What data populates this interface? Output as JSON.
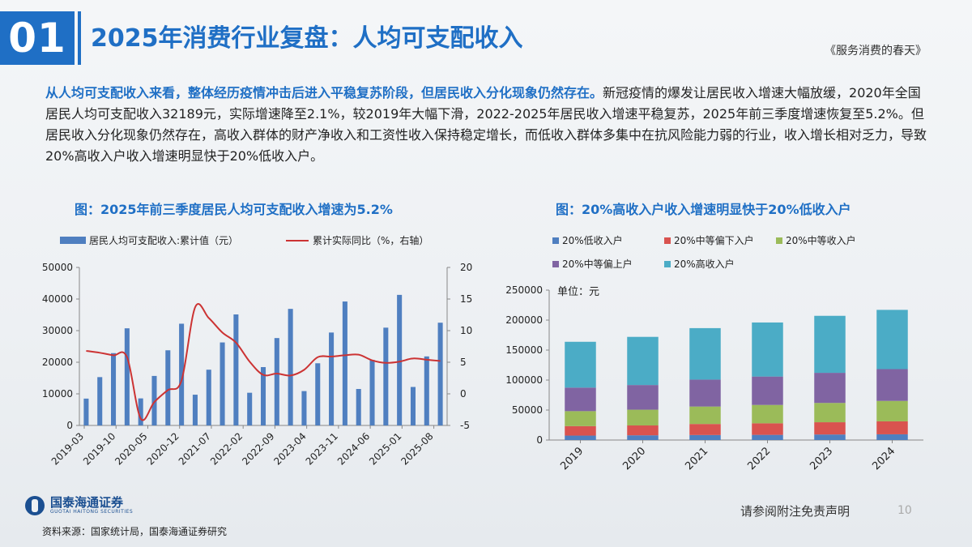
{
  "header": {
    "section_number": "01",
    "title": "2025年消费行业复盘：人均可支配收入",
    "series_name": "《服务消费的春天》"
  },
  "intro": {
    "highlight": "从人均可支配收入来看，整体经历疫情冲击后进入平稳复苏阶段，但居民收入分化现象仍然存在。",
    "body": "新冠疫情的爆发让居民收入增速大幅放缓，2020年全国居民人均可支配收入32189元，实际增速降至2.1%，较2019年大幅下滑，2022-2025年居民收入增速平稳复苏，2025年前三季度增速恢复至5.2%。但居民收入分化现象仍然存在，高收入群体的财产净收入和工资性收入保持稳定增长，而低收入群体多集中在抗风险能力弱的行业，收入增长相对乏力，导致20%高收入户收入增速明显快于20%低收入户。"
  },
  "chart_titles": {
    "left": "图：2025年前三季度居民人均可支配收入增速为5.2%",
    "right": "图：20%高收入户收入增速明显快于20%低收入户"
  },
  "chart_data": [
    {
      "type": "bar",
      "title": "图：2025年前三季度居民人均可支配收入增速为5.2%",
      "legend_position": "top",
      "y_left_lim": [
        0,
        50000
      ],
      "y_left_ticks": [
        "0",
        "10000",
        "20000",
        "30000",
        "40000",
        "50000"
      ],
      "y_right_lim": [
        -5,
        20
      ],
      "y_right_ticks": [
        "-5",
        "0",
        "5",
        "10",
        "15",
        "20"
      ],
      "x_tick_labels": [
        "2019-03",
        "2019-10",
        "2020-05",
        "2020-12",
        "2021-07",
        "2022-02",
        "2022-09",
        "2023-04",
        "2023-11",
        "2024-06",
        "2025-01",
        "2025-08"
      ],
      "bar_color": "#4f7fc0",
      "line_color": "#cc3333",
      "bar_series": {
        "name": "居民人均可支配收入:累计值（元）",
        "x": [
          "2019-03",
          "2019-06",
          "2019-09",
          "2019-12",
          "2020-03",
          "2020-06",
          "2020-09",
          "2020-12",
          "2021-03",
          "2021-06",
          "2021-09",
          "2021-12",
          "2022-03",
          "2022-06",
          "2022-09",
          "2022-12",
          "2023-03",
          "2023-06",
          "2023-09",
          "2023-12",
          "2024-03",
          "2024-06",
          "2024-09",
          "2024-12",
          "2025-03",
          "2025-06",
          "2025-09"
        ],
        "values": [
          8493,
          15294,
          22882,
          30733,
          8561,
          15666,
          23781,
          32189,
          9730,
          17642,
          26265,
          35128,
          10345,
          18463,
          27650,
          36883,
          10870,
          19672,
          29398,
          39218,
          11539,
          20733,
          30941,
          41314,
          12179,
          21840,
          32509
        ]
      },
      "line_series": {
        "name": "累计实际同比（%，右轴）",
        "x": [
          "2019-03",
          "2019-06",
          "2019-09",
          "2019-12",
          "2020-03",
          "2020-06",
          "2020-09",
          "2020-12",
          "2021-03",
          "2021-06",
          "2021-09",
          "2021-12",
          "2022-03",
          "2022-06",
          "2022-09",
          "2022-12",
          "2023-03",
          "2023-06",
          "2023-09",
          "2023-12",
          "2024-03",
          "2024-06",
          "2024-09",
          "2024-12",
          "2025-03",
          "2025-06",
          "2025-09"
        ],
        "values": [
          6.8,
          6.5,
          6.1,
          5.8,
          -3.9,
          -1.3,
          0.6,
          2.1,
          13.7,
          12.0,
          9.7,
          8.1,
          5.1,
          3.0,
          3.2,
          2.9,
          3.8,
          5.8,
          5.9,
          6.1,
          6.2,
          5.3,
          4.9,
          5.1,
          5.6,
          5.4,
          5.2
        ]
      }
    },
    {
      "type": "bar",
      "stacked": true,
      "title": "图：20%高收入户收入增速明显快于20%低收入户",
      "unit_label": "单位：元",
      "legend_position": "top-left",
      "categories": [
        "2019",
        "2020",
        "2021",
        "2022",
        "2023",
        "2024"
      ],
      "ylim": [
        0,
        250000
      ],
      "y_ticks": [
        "0",
        "50000",
        "100000",
        "150000",
        "200000",
        "250000"
      ],
      "series": [
        {
          "name": "20%低收入户",
          "color": "#4f7fc0",
          "values": [
            7380,
            7869,
            8333,
            8601,
            9215,
            9542
          ]
        },
        {
          "name": "20%中等偏下入户",
          "color": "#d9534f",
          "values": [
            15777,
            16443,
            18445,
            19303,
            20442,
            21608
          ]
        },
        {
          "name": "20%中等收入户",
          "color": "#9bbb59",
          "values": [
            25035,
            26249,
            29053,
            30598,
            32195,
            34074
          ]
        },
        {
          "name": "20%中等偏上户",
          "color": "#8064a2",
          "values": [
            39230,
            41172,
            44949,
            47397,
            50220,
            53024
          ]
        },
        {
          "name": "20%高收入户",
          "color": "#4bacc6",
          "values": [
            76401,
            80294,
            85836,
            90116,
            95055,
            98809
          ]
        }
      ]
    }
  ],
  "footer": {
    "logo_name": "国泰海通证券",
    "logo_en": "GUOTAI HAITONG SECURITIES",
    "source": "资料来源：国家统计局，国泰海通证券研究",
    "disclaimer": "请参阅附注免责声明",
    "page_number": "10"
  }
}
